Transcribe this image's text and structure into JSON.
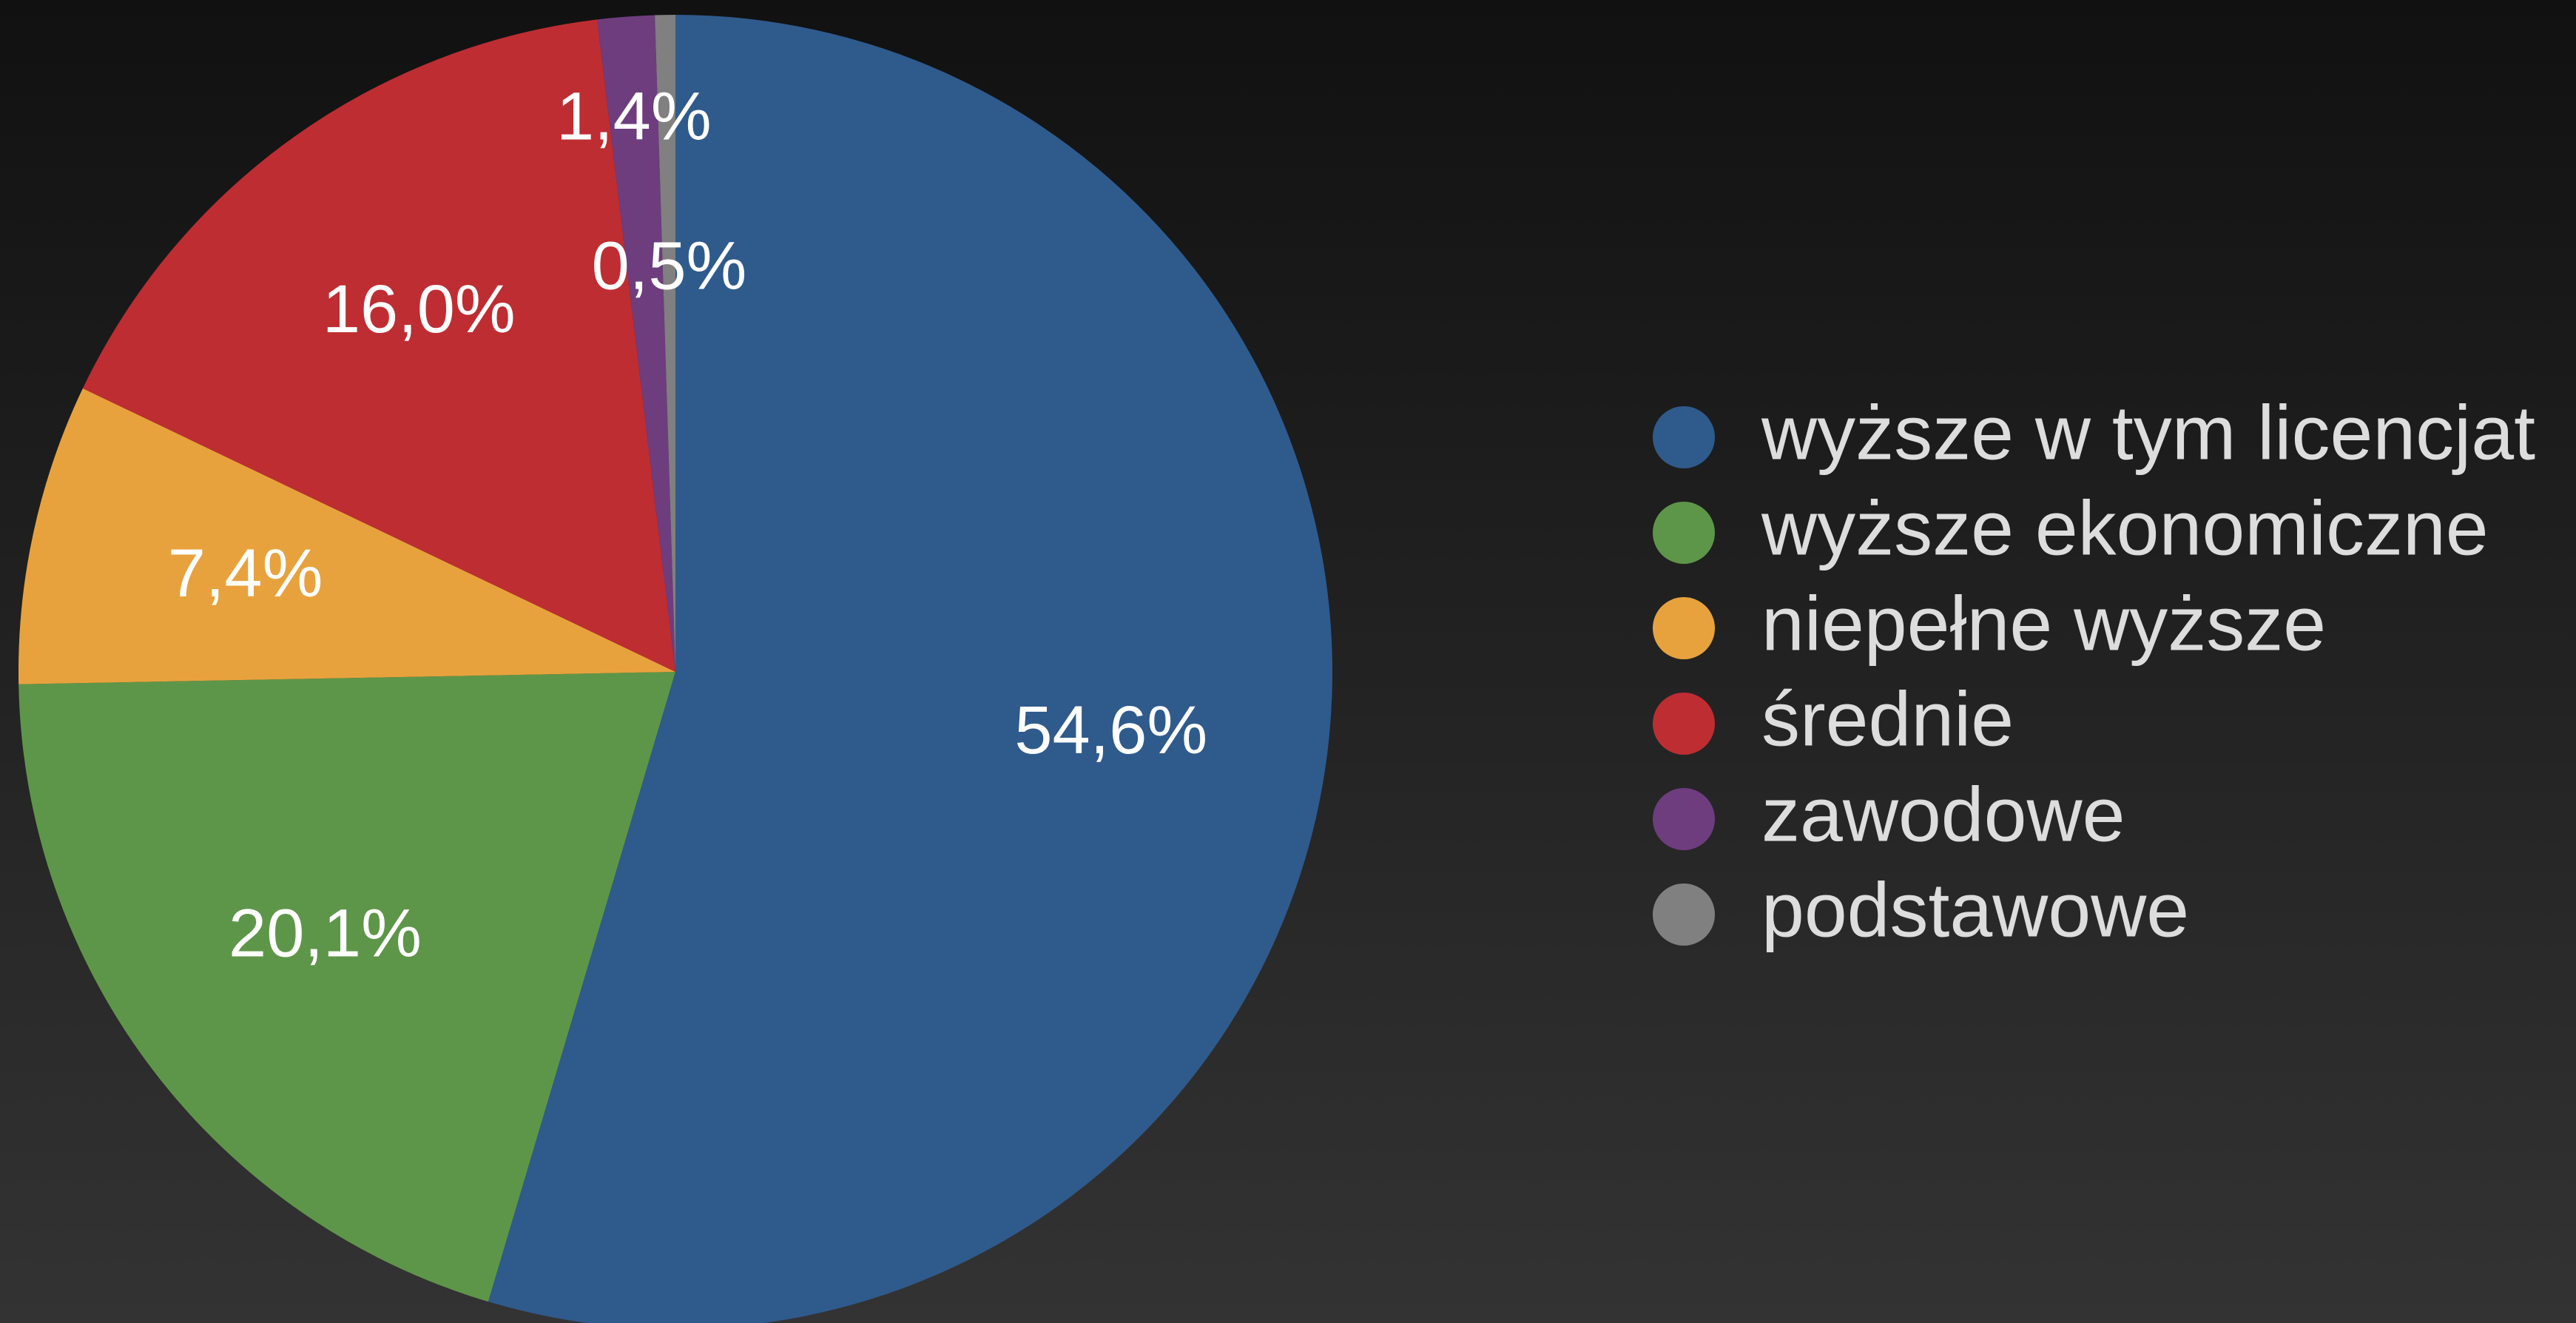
{
  "chart_data": {
    "type": "pie",
    "categories": [
      "wyższe w tym licencjat",
      "wyższe ekonomiczne",
      "niepełne wyższe",
      "średnie",
      "zawodowe",
      "podstawowe"
    ],
    "values": [
      54.6,
      20.1,
      7.4,
      16.0,
      1.4,
      0.5
    ],
    "value_labels": [
      "54,6%",
      "20,1%",
      "7,4%",
      "16,0%",
      "1,4%",
      "0,5%"
    ],
    "colors": [
      "#2f5a8c",
      "#5e9649",
      "#e8a23d",
      "#be2d32",
      "#6e3d7e",
      "#808080"
    ],
    "legend": "right"
  }
}
